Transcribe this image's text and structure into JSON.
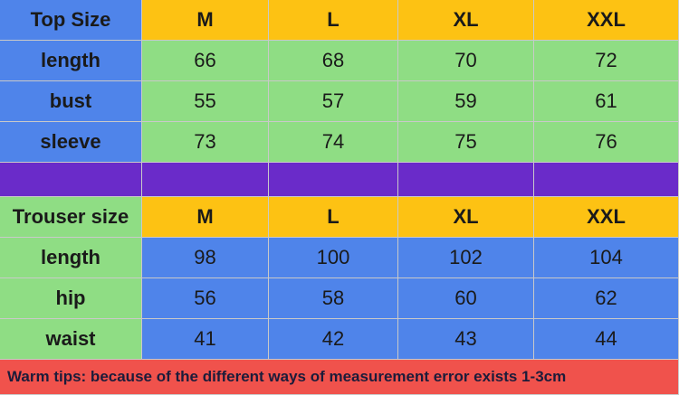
{
  "top": {
    "header": [
      "Top Size",
      "M",
      "L",
      "XL",
      "XXL"
    ],
    "rows": [
      [
        "length",
        66,
        68,
        70,
        72
      ],
      [
        "bust",
        55,
        57,
        59,
        61
      ],
      [
        "sleeve",
        73,
        74,
        75,
        76
      ]
    ]
  },
  "trouser": {
    "header": [
      "Trouser size",
      "M",
      "L",
      "XL",
      "XXL"
    ],
    "rows": [
      [
        "length",
        98,
        100,
        102,
        104
      ],
      [
        "hip",
        56,
        58,
        60,
        62
      ],
      [
        "waist",
        41,
        42,
        43,
        44
      ]
    ]
  },
  "tips": "Warm tips: because of the different ways of measurement error exists 1-3cm"
}
